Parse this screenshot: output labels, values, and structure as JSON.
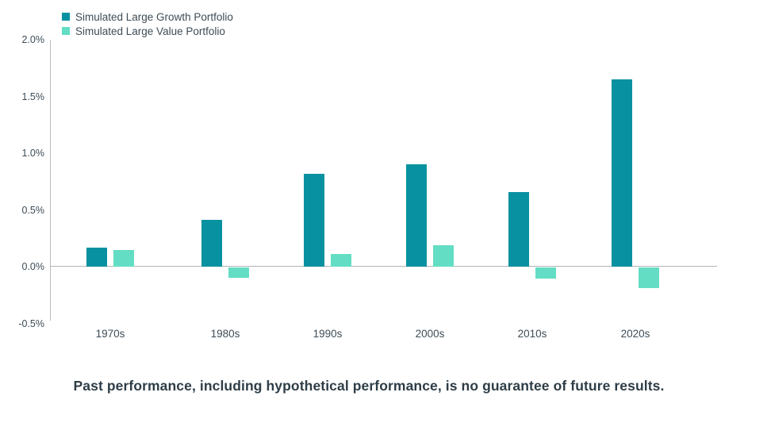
{
  "figure": {
    "footer": "Past performance, including hypothetical performance, is no guarantee of future results."
  },
  "colors": {
    "growth_series": "#0891a0",
    "value_series": "#63ddc3",
    "axis_line": "#b9bcbe",
    "zero_line": "#b3b3b3",
    "label_text": "#3d4c56",
    "footer_text": "#2e3d47"
  },
  "chart_data": {
    "type": "bar",
    "title": "",
    "xlabel": "",
    "ylabel": "",
    "categories": [
      "1970s",
      "1980s",
      "1990s",
      "2000s",
      "2010s",
      "2020s"
    ],
    "series": [
      {
        "name": "Simulated Large Growth Portfolio",
        "color": "#0891a0",
        "values": [
          0.17,
          0.41,
          0.82,
          0.9,
          0.66,
          1.65
        ]
      },
      {
        "name": "Simulated Large Value Portfolio",
        "color": "#63ddc3",
        "values": [
          0.15,
          -0.09,
          0.11,
          0.19,
          -0.1,
          -0.18
        ]
      }
    ],
    "value_unit": "%",
    "ylim": [
      -0.5,
      2.0
    ],
    "ytick_labels": [
      "2.0%",
      "1.5%",
      "1.0%",
      "0.5%",
      "0.0%",
      "-0.5%"
    ],
    "ytick_values": [
      2.0,
      1.5,
      1.0,
      0.5,
      0.0,
      -0.5
    ],
    "grid": false,
    "legend_position": "top-left"
  }
}
